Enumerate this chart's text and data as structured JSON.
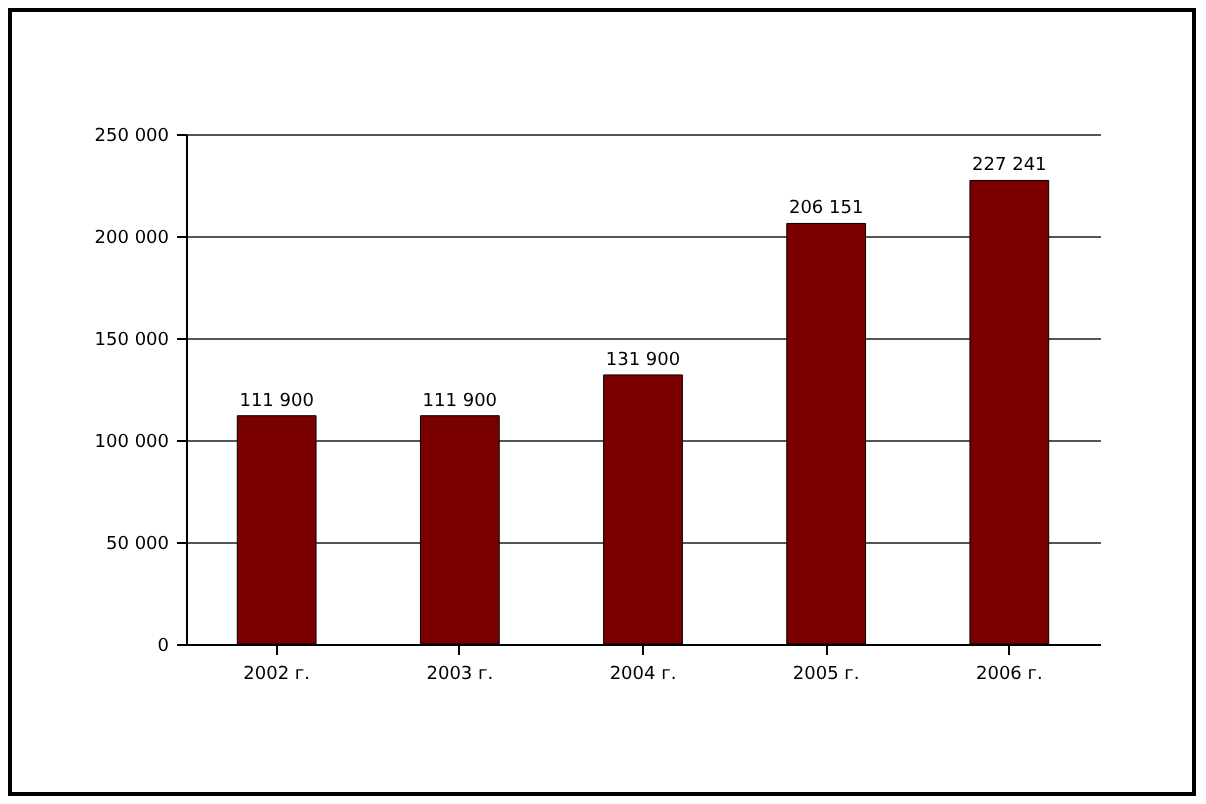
{
  "chart_data": {
    "type": "bar",
    "categories": [
      "2002 г.",
      "2003 г.",
      "2004 г.",
      "2005 г.",
      "2006 г."
    ],
    "values": [
      111900,
      111900,
      131900,
      206151,
      227241
    ],
    "value_labels": [
      "111 900",
      "111 900",
      "131 900",
      "206 151",
      "227 241"
    ],
    "color": "#7a0000",
    "ylim": [
      0,
      250000
    ],
    "yticks": [
      {
        "value": 0,
        "label": "0"
      },
      {
        "value": 50000,
        "label": "50 000"
      },
      {
        "value": 100000,
        "label": "100 000"
      },
      {
        "value": 150000,
        "label": "150 000"
      },
      {
        "value": 200000,
        "label": "200 000"
      },
      {
        "value": 250000,
        "label": "250 000"
      }
    ],
    "grid": "y"
  }
}
